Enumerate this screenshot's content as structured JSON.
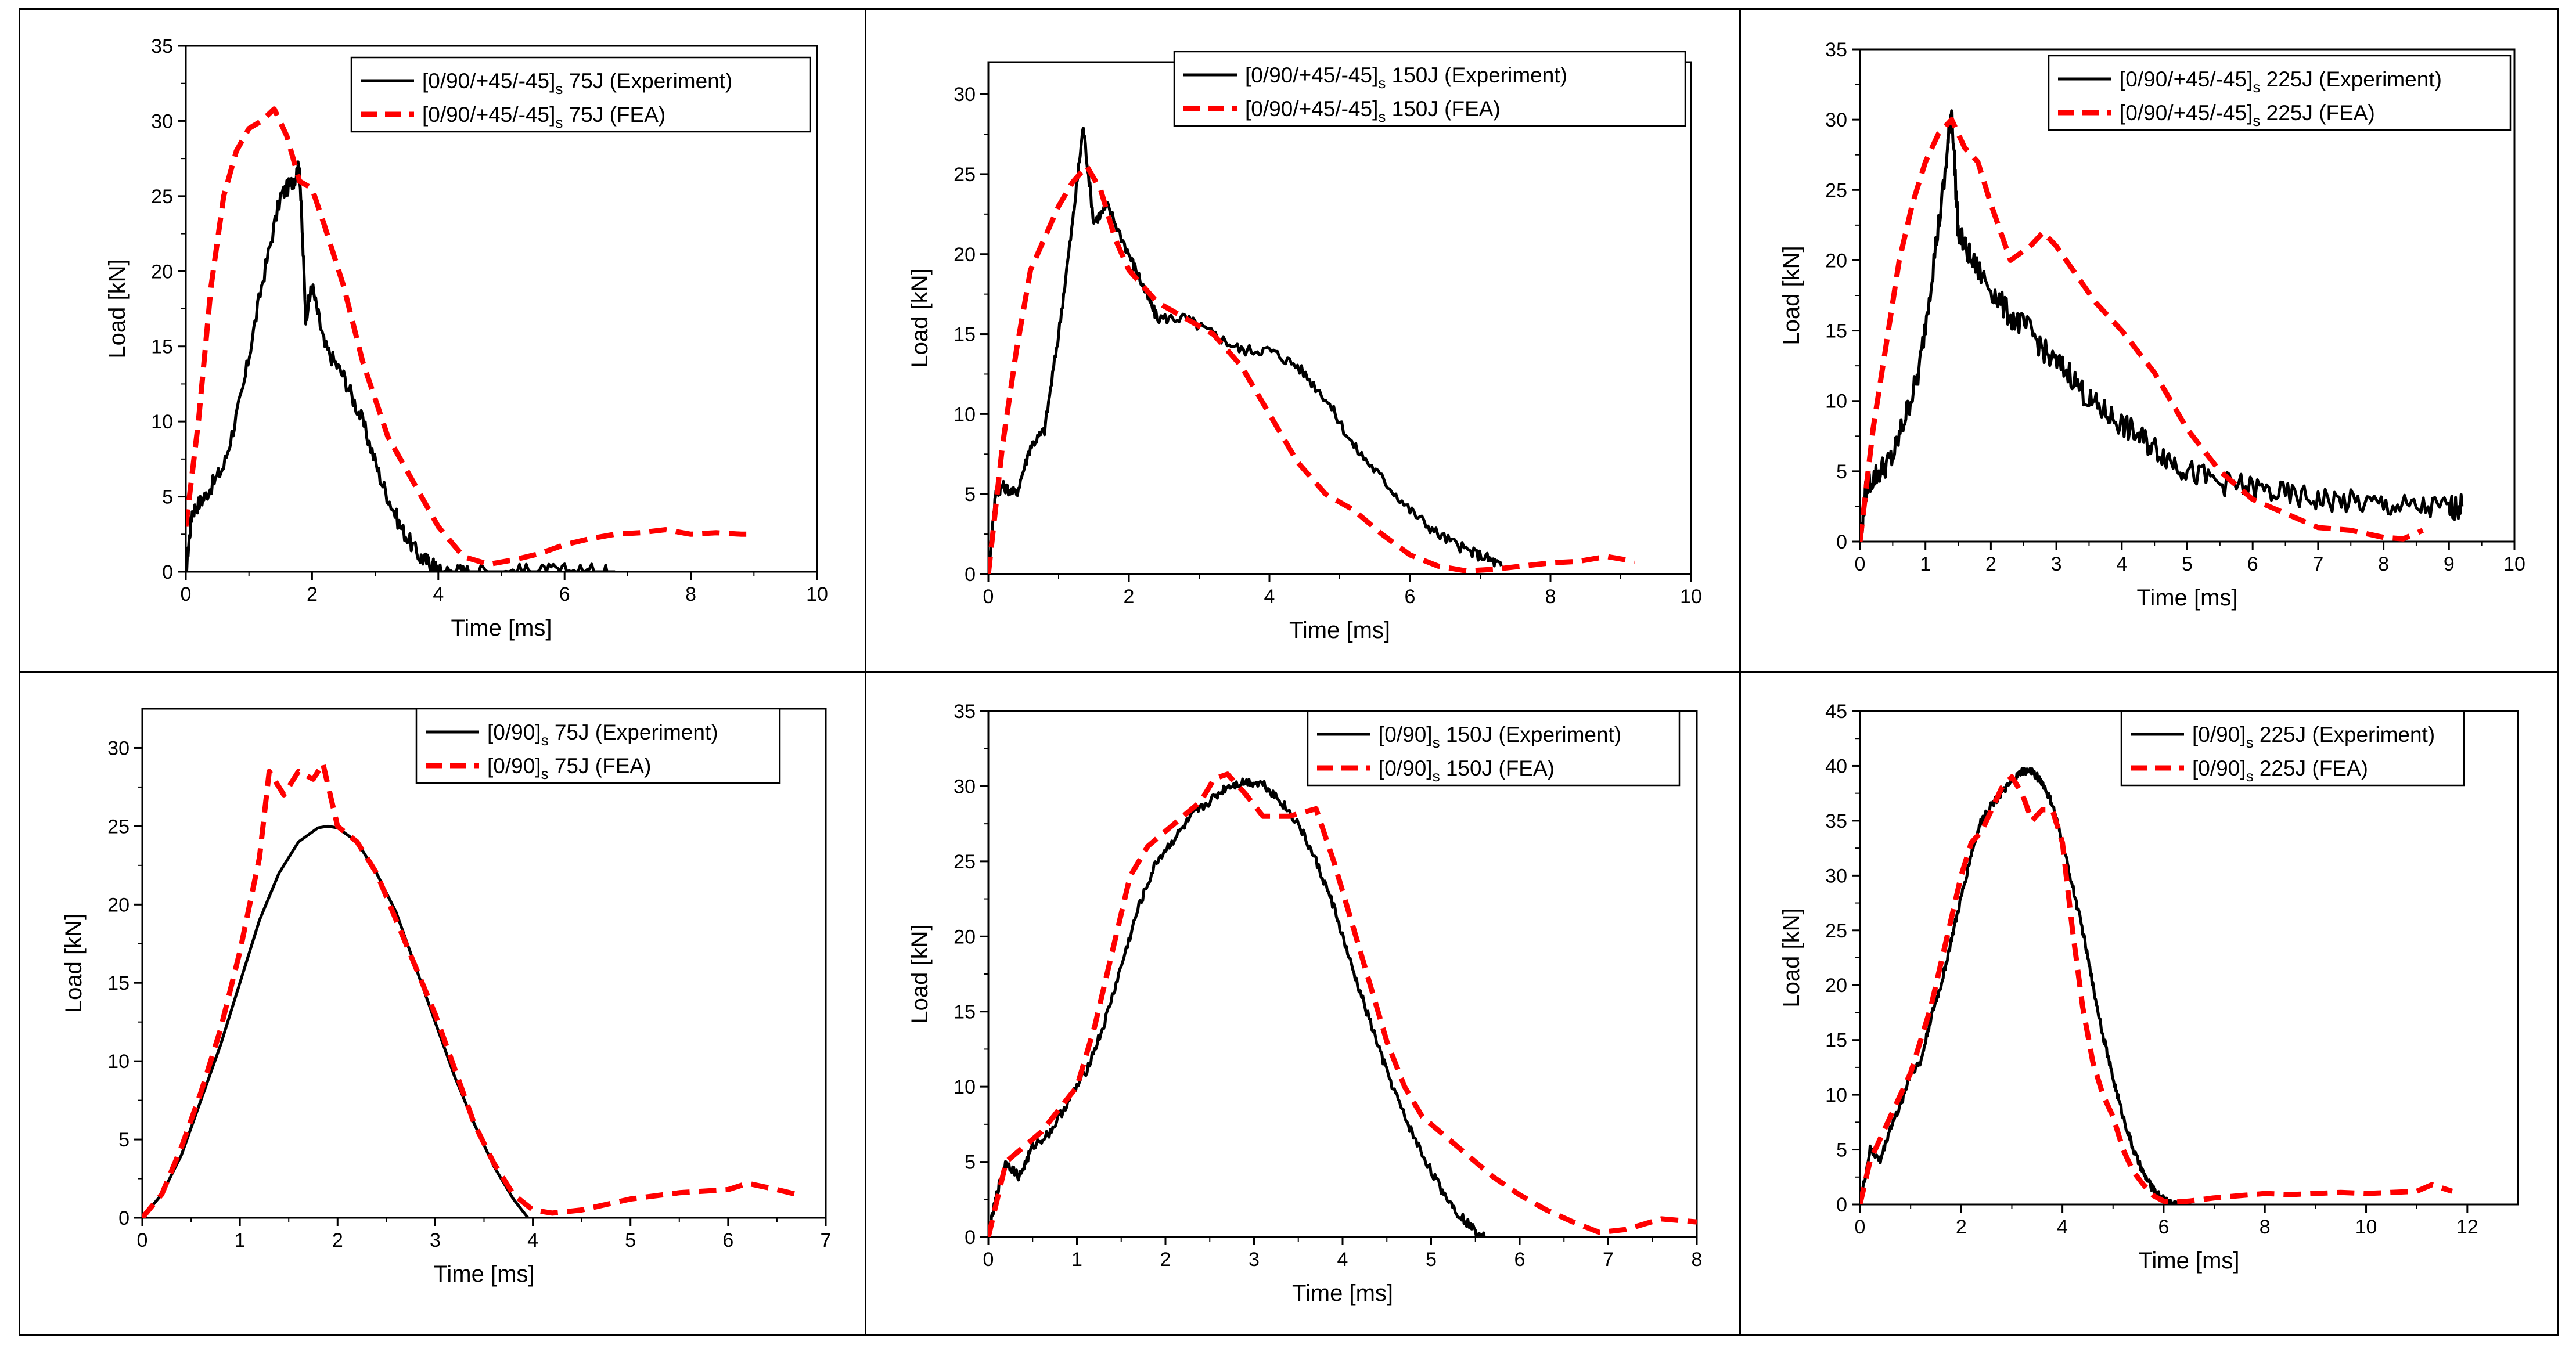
{
  "colors": {
    "experiment": "#000000",
    "fea": "#ff0000"
  },
  "chart_data": [
    {
      "type": "line",
      "xlabel": "Time [ms]",
      "ylabel": "Load [kN]",
      "xlim": [
        0,
        10
      ],
      "ylim": [
        0,
        35
      ],
      "xticks": [
        "0",
        "2",
        "4",
        "6",
        "8",
        "10"
      ],
      "yticks": [
        "0",
        "5",
        "10",
        "15",
        "20",
        "25",
        "30",
        "35"
      ],
      "legend": "top-right",
      "series": [
        {
          "name": "[0/90/+45/-45]s 75J (Experiment)",
          "label_main": "[0/90/+45/-45]",
          "label_sub": "s",
          "label_tail": " 75J (Experiment)",
          "style": "solid",
          "jitter": 0.55,
          "x": [
            0,
            0.1,
            0.3,
            0.6,
            0.9,
            1.2,
            1.5,
            1.7,
            1.8,
            1.9,
            2.0,
            2.2,
            2.5,
            2.8,
            3.1,
            3.4,
            3.7,
            3.9,
            4.0,
            4.2,
            4.5,
            5.0,
            5.5,
            6.0,
            6.5,
            6.8
          ],
          "y": [
            0,
            4,
            5,
            7,
            12,
            19,
            25,
            26,
            27,
            17,
            19,
            15,
            13,
            10,
            6,
            3,
            1,
            0.5,
            0,
            0,
            0,
            0,
            0,
            0,
            0,
            0
          ]
        },
        {
          "name": "[0/90/+45/-45]s 75J (FEA)",
          "label_main": "[0/90/+45/-45]",
          "label_sub": "s",
          "label_tail": " 75J (FEA)",
          "style": "dashed",
          "jitter": 0,
          "x": [
            0,
            0.2,
            0.4,
            0.6,
            0.8,
            1.0,
            1.2,
            1.4,
            1.6,
            1.8,
            2.0,
            2.2,
            2.5,
            2.8,
            3.2,
            3.6,
            4.0,
            4.4,
            4.8,
            5.2,
            5.6,
            6.0,
            6.4,
            6.8,
            7.2,
            7.6,
            8.0,
            8.4,
            8.8,
            9.0
          ],
          "y": [
            3,
            10,
            19,
            25,
            28,
            29.5,
            30,
            30.8,
            29,
            26,
            25.5,
            23,
            19,
            14,
            9,
            6,
            3,
            1,
            0.5,
            0.8,
            1.2,
            1.8,
            2.2,
            2.5,
            2.6,
            2.8,
            2.5,
            2.6,
            2.5,
            2.5
          ]
        }
      ]
    },
    {
      "type": "line",
      "xlabel": "Time [ms]",
      "ylabel": "Load [kN]",
      "xlim": [
        0,
        10
      ],
      "ylim": [
        0,
        32
      ],
      "xticks": [
        "0",
        "2",
        "4",
        "6",
        "8",
        "10"
      ],
      "yticks": [
        "0",
        "5",
        "10",
        "15",
        "20",
        "25",
        "30"
      ],
      "legend": "top-right",
      "series": [
        {
          "name": "[0/90/+45/-45]s 150J (Experiment)",
          "label_main": "[0/90/+45/-45]",
          "label_sub": "s",
          "label_tail": " 150J (Experiment)",
          "style": "solid",
          "jitter": 0.35,
          "x": [
            0,
            0.1,
            0.2,
            0.4,
            0.6,
            0.8,
            1.0,
            1.2,
            1.35,
            1.5,
            1.7,
            2.0,
            2.2,
            2.4,
            2.8,
            3.2,
            3.6,
            4.0,
            4.4,
            4.8,
            5.2,
            5.6,
            6.0,
            6.4,
            6.8,
            7.1,
            7.3
          ],
          "y": [
            0,
            5,
            5.5,
            5,
            8,
            9,
            15,
            22,
            28,
            22,
            23,
            20,
            18,
            16,
            16,
            15,
            14,
            14,
            13,
            11,
            8,
            6,
            4,
            2.5,
            1.5,
            1,
            0.5
          ]
        },
        {
          "name": "[0/90/+45/-45]s 150J (FEA)",
          "label_main": "[0/90/+45/-45]",
          "label_sub": "s",
          "label_tail": " 150J (FEA)",
          "style": "dashed",
          "jitter": 0,
          "x": [
            0,
            0.2,
            0.4,
            0.6,
            0.8,
            1.0,
            1.2,
            1.4,
            1.6,
            1.8,
            2.0,
            2.4,
            2.8,
            3.2,
            3.6,
            4.0,
            4.4,
            4.8,
            5.2,
            5.6,
            6.0,
            6.4,
            6.8,
            7.2,
            7.6,
            8.0,
            8.4,
            8.8,
            9.2
          ],
          "y": [
            0,
            8,
            14,
            19,
            21,
            23,
            24.5,
            25.5,
            24,
            21,
            19,
            17,
            16,
            15,
            13,
            10,
            7,
            5,
            4,
            2.5,
            1.2,
            0.5,
            0.2,
            0.3,
            0.5,
            0.7,
            0.8,
            1.1,
            0.8
          ]
        }
      ]
    },
    {
      "type": "line",
      "xlabel": "Time [ms]",
      "ylabel": "Load [kN]",
      "xlim": [
        0,
        10
      ],
      "ylim": [
        0,
        35
      ],
      "xticks": [
        "0",
        "1",
        "2",
        "3",
        "4",
        "5",
        "6",
        "7",
        "8",
        "9",
        "10"
      ],
      "yticks": [
        "0",
        "5",
        "10",
        "15",
        "20",
        "25",
        "30",
        "35"
      ],
      "legend": "top-right",
      "series": [
        {
          "name": "[0/90/+45/-45]s 225J (Experiment)",
          "label_main": "[0/90/+45/-45]",
          "label_sub": "s",
          "label_tail": " 225J (Experiment)",
          "style": "solid",
          "jitter": 0.9,
          "x": [
            0,
            0.1,
            0.3,
            0.5,
            0.7,
            0.9,
            1.1,
            1.3,
            1.4,
            1.5,
            1.7,
            2.0,
            2.3,
            2.6,
            2.9,
            3.2,
            3.5,
            3.8,
            4.1,
            4.4,
            4.7,
            5.0,
            5.5,
            6.0,
            6.5,
            7.0,
            7.5,
            8.0,
            8.5,
            9.0,
            9.2
          ],
          "y": [
            0,
            4,
            5,
            6,
            9,
            12,
            19,
            26,
            31,
            22,
            20,
            18,
            16,
            15,
            13,
            12,
            10,
            9,
            8,
            7,
            6,
            5,
            4.2,
            3.8,
            3.3,
            3,
            2.8,
            2.6,
            2.4,
            2.4,
            2.5
          ]
        },
        {
          "name": "[0/90/+45/-45]s 225J (FEA)",
          "label_main": "[0/90/+45/-45]",
          "label_sub": "s",
          "label_tail": " 225J (FEA)",
          "style": "dashed",
          "jitter": 0,
          "x": [
            0,
            0.2,
            0.4,
            0.6,
            0.8,
            1.0,
            1.2,
            1.4,
            1.6,
            1.8,
            2.0,
            2.3,
            2.6,
            2.8,
            3.0,
            3.3,
            3.6,
            4.0,
            4.5,
            5.0,
            5.5,
            6.0,
            6.5,
            7.0,
            7.5,
            8.0,
            8.3,
            8.6
          ],
          "y": [
            0,
            8,
            14,
            20,
            24,
            27,
            29,
            30,
            28,
            27,
            24,
            20,
            21,
            22,
            21,
            19,
            17,
            15,
            12,
            8,
            5,
            3,
            2,
            1,
            0.8,
            0.3,
            0.2,
            0.8
          ]
        }
      ]
    },
    {
      "type": "line",
      "xlabel": "Time [ms]",
      "ylabel": "Load [kN]",
      "xlim": [
        0,
        7
      ],
      "ylim": [
        0,
        32.5
      ],
      "xticks": [
        "0",
        "1",
        "2",
        "3",
        "4",
        "5",
        "6",
        "7"
      ],
      "yticks": [
        "0",
        "5",
        "10",
        "15",
        "20",
        "25",
        "30"
      ],
      "legend": "top-right",
      "series": [
        {
          "name": "[0/90]s 75J (Experiment)",
          "label_main": "[0/90]",
          "label_sub": "s",
          "label_tail": " 75J (Experiment)",
          "style": "solid",
          "jitter": 0,
          "x": [
            0,
            0.2,
            0.4,
            0.6,
            0.8,
            1.0,
            1.2,
            1.4,
            1.6,
            1.8,
            1.9,
            2.0,
            2.2,
            2.4,
            2.6,
            2.8,
            3.0,
            3.2,
            3.4,
            3.6,
            3.8,
            3.95
          ],
          "y": [
            0,
            1.5,
            4,
            7.5,
            11,
            15,
            19,
            22,
            24,
            24.9,
            25,
            24.9,
            24,
            22,
            19.5,
            16,
            12.5,
            9,
            6,
            3.3,
            1.2,
            0
          ]
        },
        {
          "name": "[0/90]s 75J (FEA)",
          "label_main": "[0/90]",
          "label_sub": "s",
          "label_tail": " 75J (FEA)",
          "style": "dashed",
          "jitter": 0,
          "x": [
            0,
            0.2,
            0.4,
            0.6,
            0.8,
            1.0,
            1.2,
            1.3,
            1.45,
            1.6,
            1.75,
            1.85,
            2.0,
            2.2,
            2.4,
            2.6,
            2.8,
            3.0,
            3.2,
            3.4,
            3.6,
            3.8,
            4.0,
            4.2,
            4.5,
            5.0,
            5.5,
            6.0,
            6.2,
            6.5,
            6.7
          ],
          "y": [
            0,
            1.5,
            4.5,
            8,
            12,
            17,
            23,
            28.5,
            27,
            28.5,
            28,
            29,
            25,
            24,
            22,
            19,
            16,
            13,
            9.5,
            6,
            3.5,
            1.5,
            0.5,
            0.3,
            0.5,
            1.2,
            1.6,
            1.8,
            2.2,
            1.8,
            1.5
          ]
        }
      ]
    },
    {
      "type": "line",
      "xlabel": "Time [ms]",
      "ylabel": "Load [kN]",
      "xlim": [
        0,
        8
      ],
      "ylim": [
        0,
        35
      ],
      "xticks": [
        "0",
        "1",
        "2",
        "3",
        "4",
        "5",
        "6",
        "7",
        "8"
      ],
      "yticks": [
        "0",
        "5",
        "10",
        "15",
        "20",
        "25",
        "30",
        "35"
      ],
      "legend": "top-right",
      "series": [
        {
          "name": "[0/90]s 150J (Experiment)",
          "label_main": "[0/90]",
          "label_sub": "s",
          "label_tail": " 150J (Experiment)",
          "style": "solid",
          "jitter": 0.3,
          "x": [
            0,
            0.1,
            0.2,
            0.35,
            0.5,
            0.7,
            0.9,
            1.1,
            1.3,
            1.5,
            1.7,
            1.9,
            2.1,
            2.3,
            2.5,
            2.7,
            2.9,
            3.1,
            3.3,
            3.5,
            3.7,
            3.9,
            4.1,
            4.3,
            4.5,
            4.7,
            4.9,
            5.1,
            5.3,
            5.5,
            5.6
          ],
          "y": [
            0,
            3,
            5,
            4,
            6,
            7,
            9,
            11,
            14,
            18,
            22,
            25,
            26.5,
            28,
            29,
            30,
            30.3,
            30.2,
            29,
            27.5,
            25,
            22,
            18,
            14.5,
            11,
            8,
            5.5,
            3.3,
            1.6,
            0.4,
            0
          ]
        },
        {
          "name": "[0/90]s 150J (FEA)",
          "label_main": "[0/90]",
          "label_sub": "s",
          "label_tail": " 150J (FEA)",
          "style": "dashed",
          "jitter": 0,
          "x": [
            0,
            0.2,
            0.4,
            0.6,
            0.8,
            1.0,
            1.2,
            1.4,
            1.6,
            1.8,
            2.0,
            2.2,
            2.4,
            2.55,
            2.7,
            2.9,
            3.1,
            3.4,
            3.7,
            3.9,
            4.1,
            4.3,
            4.5,
            4.7,
            4.9,
            5.1,
            5.4,
            5.7,
            6.0,
            6.3,
            6.6,
            6.9,
            7.2,
            7.6,
            8.0
          ],
          "y": [
            0,
            5,
            6,
            7,
            8.5,
            10,
            14,
            19,
            24,
            26,
            27,
            28,
            29,
            30.5,
            30.8,
            29.5,
            28,
            28,
            28.5,
            25,
            21,
            17,
            13,
            10,
            8,
            7,
            5.5,
            4,
            2.8,
            1.8,
            1,
            0.3,
            0.5,
            1.2,
            1
          ]
        }
      ]
    },
    {
      "type": "line",
      "xlabel": "Time [ms]",
      "ylabel": "Load [kN]",
      "xlim": [
        0,
        13
      ],
      "ylim": [
        0,
        45
      ],
      "xticks": [
        "0",
        "2",
        "4",
        "6",
        "8",
        "10",
        "12"
      ],
      "yticks": [
        "0",
        "5",
        "10",
        "15",
        "20",
        "25",
        "30",
        "35",
        "40",
        "45"
      ],
      "legend": "top-right",
      "series": [
        {
          "name": "[0/90]s 225J (Experiment)",
          "label_main": "[0/90]",
          "label_sub": "s",
          "label_tail": " 225J (Experiment)",
          "style": "solid",
          "jitter": 0.35,
          "x": [
            0,
            0.2,
            0.4,
            0.6,
            0.8,
            1.0,
            1.2,
            1.4,
            1.6,
            1.8,
            2.0,
            2.2,
            2.4,
            2.6,
            2.8,
            3.0,
            3.2,
            3.4,
            3.6,
            3.8,
            4.0,
            4.2,
            4.4,
            4.6,
            4.8,
            5.0,
            5.2,
            5.4,
            5.6,
            5.8,
            6.0,
            6.2,
            6.4
          ],
          "y": [
            0,
            5,
            4,
            7,
            9,
            12,
            13,
            17,
            20,
            24,
            28,
            32,
            35,
            36.5,
            37.5,
            38.5,
            39.5,
            39.5,
            38.5,
            36.5,
            33,
            29,
            25,
            20,
            15.5,
            11.5,
            8,
            5,
            2.8,
            1.3,
            0.5,
            0.1,
            0
          ]
        },
        {
          "name": "[0/90]s 225J (FEA)",
          "label_main": "[0/90]",
          "label_sub": "s",
          "label_tail": " 225J (FEA)",
          "style": "dashed",
          "jitter": 0,
          "x": [
            0,
            0.2,
            0.4,
            0.6,
            0.8,
            1.0,
            1.2,
            1.4,
            1.6,
            1.8,
            2.0,
            2.2,
            2.4,
            2.6,
            2.8,
            3.0,
            3.2,
            3.4,
            3.6,
            3.8,
            4.0,
            4.2,
            4.4,
            4.6,
            4.8,
            5.0,
            5.2,
            5.4,
            5.6,
            5.8,
            6.0,
            6.2,
            6.5,
            7.0,
            7.5,
            8.0,
            8.5,
            9.0,
            9.5,
            10.0,
            10.5,
            11.0,
            11.3,
            11.7
          ],
          "y": [
            0,
            4,
            6,
            8,
            10,
            12,
            15,
            18,
            22,
            26,
            30,
            33,
            34,
            36,
            38,
            39,
            37.5,
            35,
            36,
            36,
            33,
            25,
            18,
            13,
            10,
            8,
            5,
            3,
            1.8,
            0.8,
            0.3,
            0.2,
            0.3,
            0.6,
            0.8,
            1,
            0.9,
            1,
            1.1,
            1,
            1.1,
            1.2,
            1.8,
            1.2
          ]
        }
      ]
    }
  ]
}
